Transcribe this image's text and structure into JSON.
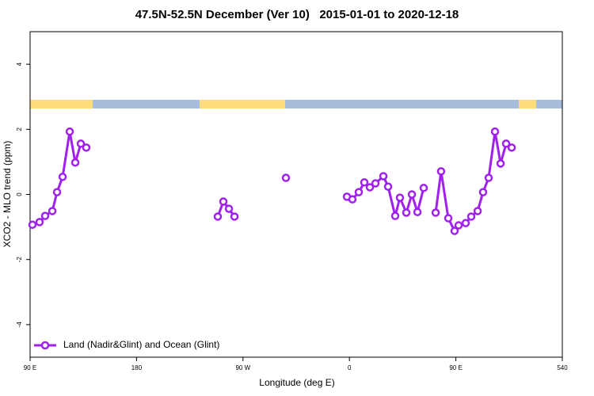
{
  "chart_data": {
    "type": "line",
    "title": "47.5N-52.5N December (Ver 10)   2015-01-01 to 2020-12-18",
    "x_label": "Longitude (deg E)",
    "y_label": "XCO2 - MLO trend (ppm)",
    "xlim": [
      90,
      540
    ],
    "ylim": [
      -5,
      5
    ],
    "xticks": [
      {
        "value": 90,
        "label": "90 E"
      },
      180,
      {
        "value": 270,
        "label": "90 W"
      },
      {
        "value": 360,
        "label": "0"
      },
      {
        "value": 450,
        "label": "90 E"
      },
      540
    ],
    "yticks": [
      -4,
      -2,
      0,
      2,
      4
    ],
    "legend": "bottom-left",
    "series": [
      {
        "name": "Land (Nadir&Glint) and Ocean (Glint)",
        "color": "#a020f0",
        "x": [
          92.0,
          98.0,
          102.7,
          108.8,
          112.8,
          117.5,
          123.5,
          128.2,
          132.9,
          137.5,
          null,
          248.7,
          253.4,
          258.1,
          262.8,
          null,
          306.3,
          null,
          357.9,
          362.5,
          367.9,
          372.6,
          377.3,
          382.0,
          388.7,
          392.7,
          398.7,
          402.7,
          408.1,
          412.8,
          417.5,
          422.8,
          null,
          432.9,
          437.5,
          443.6,
          448.9,
          452.3,
          458.3,
          463.0,
          468.4,
          473.0,
          477.7,
          483.1,
          487.8,
          492.5,
          497.2
        ],
        "values": [
          -0.93,
          -0.85,
          -0.66,
          -0.51,
          0.07,
          0.54,
          1.93,
          0.98,
          1.56,
          1.44,
          null,
          -0.68,
          -0.22,
          -0.44,
          -0.68,
          null,
          0.51,
          null,
          -0.07,
          -0.15,
          0.07,
          0.37,
          0.22,
          0.34,
          0.56,
          0.24,
          -0.66,
          -0.1,
          -0.56,
          0.0,
          -0.54,
          0.2,
          null,
          -0.56,
          0.71,
          -0.73,
          -1.12,
          -0.95,
          -0.88,
          -0.68,
          -0.51,
          0.07,
          0.51,
          1.93,
          0.95,
          1.56,
          1.44
        ]
      }
    ]
  }
}
